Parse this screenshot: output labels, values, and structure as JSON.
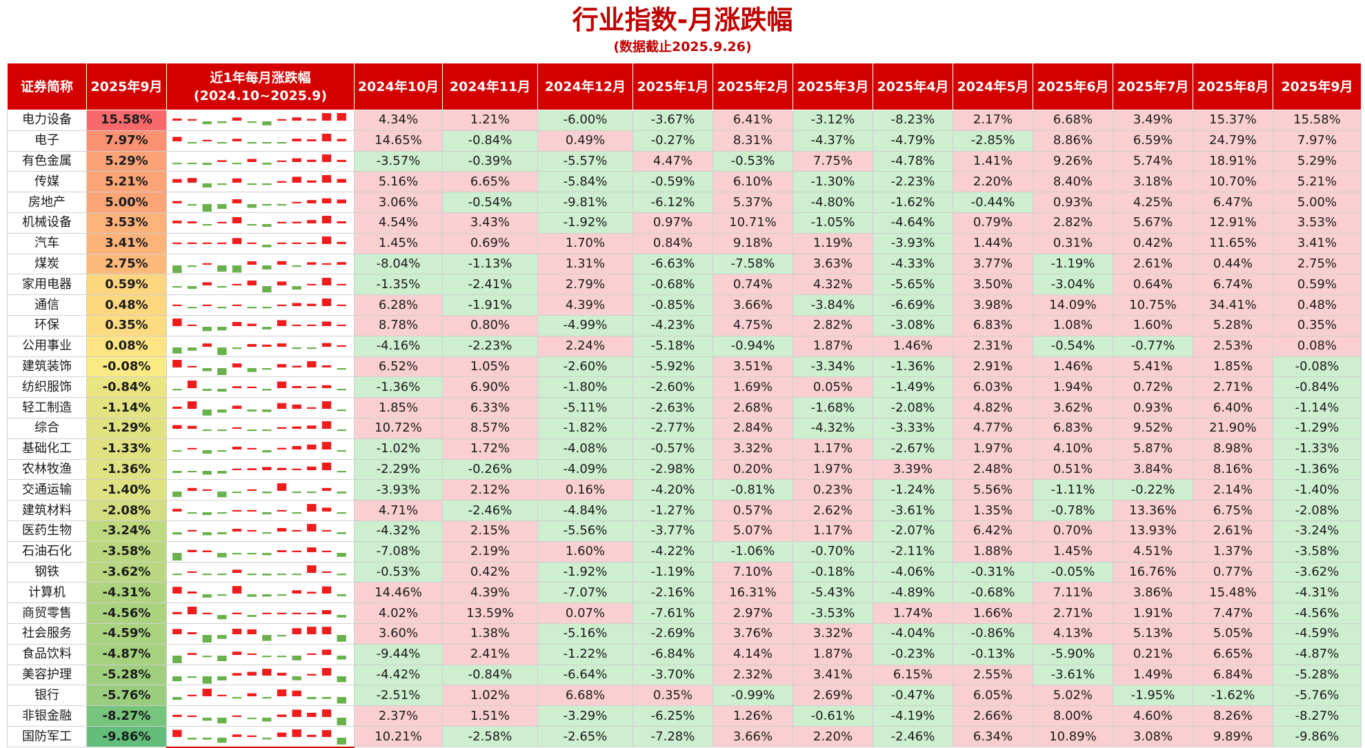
{
  "header": {
    "title": "行业指数-月涨跌幅",
    "subtitle": "(数据截止2025.9.26)"
  },
  "colors": {
    "header_bg": "#d40000",
    "positive_cell": "#f9cfd1",
    "negative_cell": "#cdeecf",
    "spark_up": "#ee1c1c",
    "spark_down": "#6ab04c"
  },
  "chart_data": {
    "type": "table",
    "columns": [
      "证券简称",
      "2025年9月",
      "近1年每月涨跌幅",
      "2024年10月",
      "2024年11月",
      "2024年12月",
      "2025年1月",
      "2025年2月",
      "2025年3月",
      "2025年4月",
      "2024年5月",
      "2025年6月",
      "2025年7月",
      "2025年8月",
      "2025年9月"
    ],
    "spark_header_line1": "近1年每月涨跌幅",
    "spark_header_line2": "(2024.10~2025.9)",
    "month_columns": [
      "2024年10月",
      "2024年11月",
      "2024年12月",
      "2025年1月",
      "2025年2月",
      "2025年3月",
      "2025年4月",
      "2024年5月",
      "2025年6月",
      "2025年7月",
      "2025年8月",
      "2025年9月"
    ],
    "unit": "%",
    "rows": [
      {
        "name": "电力设备",
        "values": [
          4.34,
          1.21,
          -6.0,
          -3.67,
          6.41,
          -3.12,
          -8.23,
          2.17,
          6.68,
          3.49,
          15.37,
          15.58
        ]
      },
      {
        "name": "电子",
        "values": [
          14.65,
          -0.84,
          0.49,
          -0.27,
          8.31,
          -4.37,
          -4.79,
          -2.85,
          8.86,
          6.59,
          24.79,
          7.97
        ]
      },
      {
        "name": "有色金属",
        "values": [
          -3.57,
          -0.39,
          -5.57,
          4.47,
          -0.53,
          7.75,
          -4.78,
          1.41,
          9.26,
          5.74,
          18.91,
          5.29
        ]
      },
      {
        "name": "传媒",
        "values": [
          5.16,
          6.65,
          -5.84,
          -0.59,
          6.1,
          -1.3,
          -2.23,
          2.2,
          8.4,
          3.18,
          10.7,
          5.21
        ]
      },
      {
        "name": "房地产",
        "values": [
          3.06,
          -0.54,
          -9.81,
          -6.12,
          5.37,
          -4.8,
          -1.62,
          -0.44,
          0.93,
          4.25,
          6.47,
          5.0
        ]
      },
      {
        "name": "机械设备",
        "values": [
          4.54,
          3.43,
          -1.92,
          0.97,
          10.71,
          -1.05,
          -4.64,
          0.79,
          2.82,
          5.67,
          12.91,
          3.53
        ]
      },
      {
        "name": "汽车",
        "values": [
          1.45,
          0.69,
          1.7,
          0.84,
          9.18,
          1.19,
          -3.93,
          1.44,
          0.31,
          0.42,
          11.65,
          3.41
        ]
      },
      {
        "name": "煤炭",
        "values": [
          -8.04,
          -1.13,
          1.31,
          -6.63,
          -7.58,
          3.63,
          -4.33,
          3.77,
          -1.19,
          2.61,
          0.44,
          2.75
        ]
      },
      {
        "name": "家用电器",
        "values": [
          -1.35,
          -2.41,
          2.79,
          -0.68,
          0.74,
          4.32,
          -5.65,
          3.5,
          -3.04,
          0.64,
          6.74,
          0.59
        ]
      },
      {
        "name": "通信",
        "values": [
          6.28,
          -1.91,
          4.39,
          -0.85,
          3.66,
          -3.84,
          -6.69,
          3.98,
          14.09,
          10.75,
          34.41,
          0.48
        ]
      },
      {
        "name": "环保",
        "values": [
          8.78,
          0.8,
          -4.99,
          -4.23,
          4.75,
          2.82,
          -3.08,
          6.83,
          1.08,
          1.6,
          5.28,
          0.35
        ]
      },
      {
        "name": "公用事业",
        "values": [
          -4.16,
          -2.23,
          2.24,
          -5.18,
          -0.94,
          1.87,
          1.46,
          2.31,
          -0.54,
          -0.77,
          2.53,
          0.08
        ]
      },
      {
        "name": "建筑装饰",
        "values": [
          6.52,
          1.05,
          -2.6,
          -5.92,
          3.51,
          -3.34,
          -1.36,
          2.91,
          1.46,
          5.41,
          1.85,
          -0.08
        ]
      },
      {
        "name": "纺织服饰",
        "values": [
          -1.36,
          6.9,
          -1.8,
          -2.6,
          1.69,
          0.05,
          -1.49,
          6.03,
          1.94,
          0.72,
          2.71,
          -0.84
        ]
      },
      {
        "name": "轻工制造",
        "values": [
          1.85,
          6.33,
          -5.11,
          -2.63,
          2.68,
          -1.68,
          -2.08,
          4.82,
          3.62,
          0.93,
          6.4,
          -1.14
        ]
      },
      {
        "name": "综合",
        "values": [
          10.72,
          8.57,
          -1.82,
          -2.77,
          2.84,
          -4.32,
          -3.33,
          4.77,
          6.83,
          9.52,
          21.9,
          -1.29
        ]
      },
      {
        "name": "基础化工",
        "values": [
          -1.02,
          1.72,
          -4.08,
          -0.57,
          3.32,
          1.17,
          -2.67,
          1.97,
          4.1,
          5.87,
          8.98,
          -1.33
        ]
      },
      {
        "name": "农林牧渔",
        "values": [
          -2.29,
          -0.26,
          -4.09,
          -2.98,
          0.2,
          1.97,
          3.39,
          2.48,
          0.51,
          3.84,
          8.16,
          -1.36
        ]
      },
      {
        "name": "交通运输",
        "values": [
          -3.93,
          2.12,
          0.16,
          -4.2,
          -0.81,
          0.23,
          -1.24,
          5.56,
          -1.11,
          -0.22,
          2.14,
          -1.4
        ]
      },
      {
        "name": "建筑材料",
        "values": [
          4.71,
          -2.46,
          -4.84,
          -1.27,
          0.57,
          2.62,
          -3.61,
          1.35,
          -0.78,
          13.36,
          6.75,
          -2.08
        ]
      },
      {
        "name": "医药生物",
        "values": [
          -4.32,
          2.15,
          -5.56,
          -3.77,
          5.07,
          1.17,
          -2.07,
          6.42,
          0.7,
          13.93,
          2.61,
          -3.24
        ]
      },
      {
        "name": "石油石化",
        "values": [
          -7.08,
          2.19,
          1.6,
          -4.22,
          -1.06,
          -0.7,
          -2.11,
          1.88,
          1.45,
          4.51,
          1.37,
          -3.58
        ]
      },
      {
        "name": "钢铁",
        "values": [
          -0.53,
          0.42,
          -1.92,
          -1.19,
          7.1,
          -0.18,
          -4.06,
          -0.31,
          -0.05,
          16.76,
          0.77,
          -3.62
        ]
      },
      {
        "name": "计算机",
        "values": [
          14.46,
          4.39,
          -7.07,
          -2.16,
          16.31,
          -5.43,
          -4.89,
          -0.68,
          7.11,
          3.86,
          15.48,
          -4.31
        ]
      },
      {
        "name": "商贸零售",
        "values": [
          4.02,
          13.59,
          0.07,
          -7.61,
          2.97,
          -3.53,
          1.74,
          1.66,
          2.71,
          1.91,
          7.47,
          -4.56
        ]
      },
      {
        "name": "社会服务",
        "values": [
          3.6,
          1.38,
          -5.16,
          -2.69,
          3.76,
          3.32,
          -4.04,
          -0.86,
          4.13,
          5.13,
          5.05,
          -4.59
        ]
      },
      {
        "name": "食品饮料",
        "values": [
          -9.44,
          2.41,
          -1.22,
          -6.84,
          4.14,
          1.87,
          -0.23,
          -0.13,
          -5.9,
          0.21,
          6.65,
          -4.87
        ]
      },
      {
        "name": "美容护理",
        "values": [
          -4.42,
          -0.84,
          -6.64,
          -3.7,
          2.32,
          3.41,
          6.15,
          2.55,
          -3.61,
          1.49,
          6.84,
          -5.28
        ]
      },
      {
        "name": "银行",
        "values": [
          -2.51,
          1.02,
          6.68,
          0.35,
          -0.99,
          2.69,
          -0.47,
          6.05,
          5.02,
          -1.95,
          -1.62,
          -5.76
        ]
      },
      {
        "name": "非银金融",
        "values": [
          2.37,
          1.51,
          -3.29,
          -6.25,
          1.26,
          -0.61,
          -4.19,
          2.66,
          8.0,
          4.6,
          8.26,
          -8.27
        ]
      },
      {
        "name": "国防军工",
        "values": [
          10.21,
          -2.58,
          -2.65,
          -7.28,
          3.66,
          2.2,
          -2.46,
          6.34,
          10.89,
          3.08,
          9.89,
          -9.86
        ]
      }
    ]
  }
}
